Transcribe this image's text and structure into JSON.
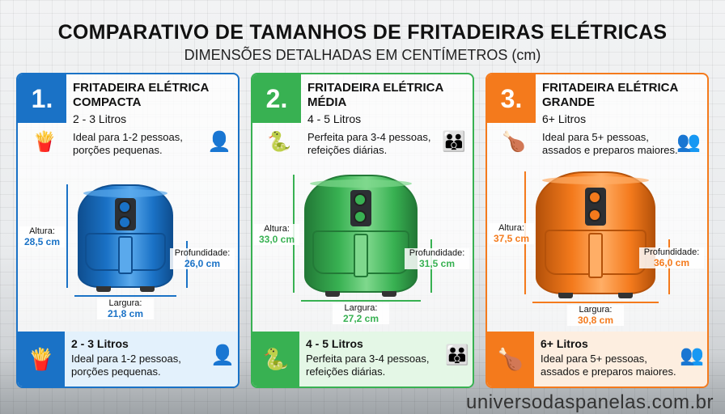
{
  "title": "COMPARATIVO DE TAMANHOS DE FRITADEIRAS ELÉTRICAS",
  "subtitle": "DIMENSÕES DETALHADAS EM CENTÍMETROS (cm)",
  "watermark": "universodaspanelas.com.br",
  "cards": [
    {
      "number": "1.",
      "title": "FRITADEIRA ELÉTRICA COMPACTA",
      "liters": "2 - 3 Litros",
      "description": "Ideal para 1-2 pessoas, porções pequenas.",
      "food_icon": "fries-icon",
      "people_icon": "person-icon",
      "height_label": "Altura:",
      "height": "28,5 cm",
      "depth_label": "Profundidade:",
      "depth": "26,0 cm",
      "width_label": "Largura:",
      "width": "21,8 cm",
      "footer_title": "2 - 3 Litros",
      "footer_text": "Ideal para 1-2 pessoas, porções pequenas.",
      "color": "#1a72c6",
      "dark": "#0f4f91",
      "light": "#5aa9ec",
      "bg": "#e3f1fc"
    },
    {
      "number": "2.",
      "title": "FRITADEIRA ELÉTRICA MÉDIA",
      "liters": "4 - 5 Litros",
      "description": "Perfeita para 3-4 pessoas, refeições diárias.",
      "food_icon": "snake-icon",
      "people_icon": "family-icon",
      "height_label": "Altura:",
      "height": "33,0 cm",
      "depth_label": "Profundidade:",
      "depth": "31,5 cm",
      "width_label": "Largura:",
      "width": "27,2 cm",
      "footer_title": "4 - 5 Litros",
      "footer_text": "Perfeita para 3-4 pessoas, refeições diárias.",
      "color": "#38b152",
      "dark": "#237a37",
      "light": "#7fd88d",
      "bg": "#e4f7e6"
    },
    {
      "number": "3.",
      "title": "FRITADEIRA ELÉTRICA GRANDE",
      "liters": "6+ Litros",
      "description": "Ideal para 5+ pessoas, assados e preparos maiores.",
      "food_icon": "roast-chicken-icon",
      "people_icon": "group-icon",
      "height_label": "Altura:",
      "height": "37,5 cm",
      "depth_label": "Profundidade:",
      "depth": "36,0 cm",
      "width_label": "Largura:",
      "width": "30,8 cm",
      "footer_title": "6+ Litros",
      "footer_text": "Ideal para 5+ pessoas, assados e preparos maiores.",
      "color": "#f47a1c",
      "dark": "#b5520a",
      "light": "#ffae66",
      "bg": "#fdeee0"
    }
  ]
}
